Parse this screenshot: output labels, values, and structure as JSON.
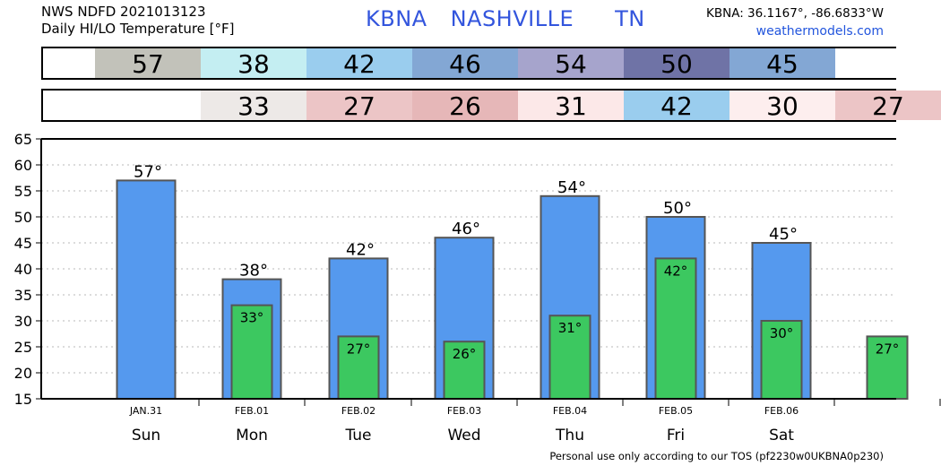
{
  "header": {
    "line1": "NWS NDFD 2021013123",
    "line2": "Daily HI/LO Temperature [°F]",
    "station": "KBNA",
    "city": "NASHVILLE",
    "state": "TN",
    "coords": "KBNA: 36.1167°, -86.6833°W",
    "site": "weathermodels.com"
  },
  "hi_row": [
    {
      "label": "",
      "color": "#ffffff"
    },
    {
      "label": "57",
      "color": "#c2c2ba"
    },
    {
      "label": "38",
      "color": "#c4eef2"
    },
    {
      "label": "42",
      "color": "#9acdee"
    },
    {
      "label": "46",
      "color": "#83a7d4"
    },
    {
      "label": "54",
      "color": "#a6a4cc"
    },
    {
      "label": "50",
      "color": "#6f73a6"
    },
    {
      "label": "45",
      "color": "#83a7d4"
    },
    {
      "label": "",
      "color": "#ffffff"
    }
  ],
  "lo_row": [
    {
      "label": "",
      "color": "#ffffff"
    },
    {
      "label": "",
      "color": "#ffffff"
    },
    {
      "label": "33",
      "color": "#ede9e7"
    },
    {
      "label": "27",
      "color": "#ecc5c6"
    },
    {
      "label": "26",
      "color": "#e6b7b8"
    },
    {
      "label": "31",
      "color": "#fce8e8"
    },
    {
      "label": "42",
      "color": "#9acdee"
    },
    {
      "label": "30",
      "color": "#fdeeee"
    },
    {
      "label": "27",
      "color": "#ecc5c6"
    }
  ],
  "chart_data": {
    "type": "bar",
    "ylim": [
      15,
      65
    ],
    "yticks": [
      "15",
      "20",
      "25",
      "30",
      "35",
      "40",
      "45",
      "50",
      "55",
      "60",
      "65"
    ],
    "grid": true,
    "degree_symbol": "°",
    "dates": [
      "JAN.31",
      "FEB.01",
      "FEB.02",
      "FEB.03",
      "FEB.04",
      "FEB.05",
      "FEB.06",
      ""
    ],
    "days": [
      "Sun",
      "Mon",
      "Tue",
      "Wed",
      "Thu",
      "Fri",
      "Sat",
      ""
    ],
    "series": [
      {
        "values": [
          57,
          38,
          42,
          46,
          54,
          50,
          45,
          null
        ],
        "color": "#5599ee"
      },
      {
        "values": [
          null,
          33,
          27,
          26,
          31,
          42,
          30,
          27
        ],
        "color": "#3cc860"
      }
    ]
  },
  "footer": "Personal use only according to our TOS (pf2230w0UKBNA0p230)"
}
